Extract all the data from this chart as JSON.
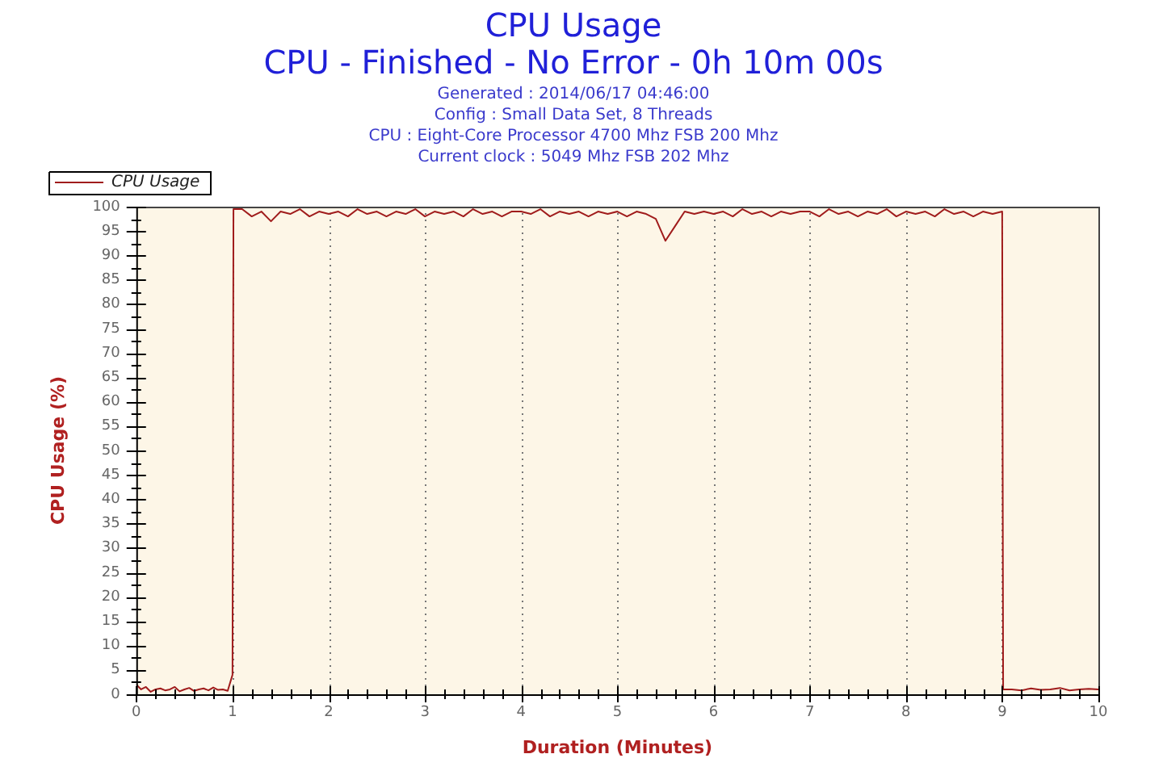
{
  "chart_data": {
    "type": "line",
    "title": "CPU Usage",
    "subtitle": "CPU - Finished - No Error - 0h 10m 00s",
    "annotations": [
      "Generated : 2014/06/17 04:46:00",
      "Config : Small Data Set, 8 Threads",
      "CPU : Eight-Core Processor 4700 Mhz FSB 200 Mhz",
      "Current clock : 5049 Mhz FSB 202 Mhz"
    ],
    "xlabel": "Duration (Minutes)",
    "ylabel": "CPU Usage (%)",
    "x": [
      0,
      0.05,
      0.1,
      0.15,
      0.2,
      0.25,
      0.3,
      0.35,
      0.4,
      0.45,
      0.5,
      0.55,
      0.6,
      0.65,
      0.7,
      0.75,
      0.8,
      0.85,
      0.9,
      0.95,
      1,
      1.01,
      1.1,
      1.2,
      1.3,
      1.4,
      1.5,
      1.6,
      1.7,
      1.8,
      1.9,
      2,
      2.1,
      2.2,
      2.3,
      2.4,
      2.5,
      2.6,
      2.7,
      2.8,
      2.9,
      3,
      3.1,
      3.2,
      3.3,
      3.4,
      3.5,
      3.6,
      3.7,
      3.8,
      3.9,
      4,
      4.1,
      4.2,
      4.3,
      4.4,
      4.5,
      4.6,
      4.7,
      4.8,
      4.9,
      5,
      5.1,
      5.2,
      5.3,
      5.4,
      5.5,
      5.6,
      5.7,
      5.8,
      5.9,
      6,
      6.1,
      6.2,
      6.3,
      6.4,
      6.5,
      6.6,
      6.7,
      6.8,
      6.9,
      7,
      7.1,
      7.2,
      7.3,
      7.4,
      7.5,
      7.6,
      7.7,
      7.8,
      7.9,
      8,
      8.1,
      8.2,
      8.3,
      8.4,
      8.5,
      8.6,
      8.7,
      8.8,
      8.9,
      9,
      9.01,
      9.1,
      9.2,
      9.3,
      9.4,
      9.5,
      9.6,
      9.7,
      9.8,
      9.9,
      10
    ],
    "series": [
      {
        "name": "CPU Usage",
        "color": "#a01c1c",
        "values": [
          2,
          1,
          1.5,
          0.5,
          1,
          1.2,
          0.8,
          1,
          1.5,
          0.6,
          1,
          1.3,
          0.7,
          1,
          1.2,
          0.8,
          1.4,
          0.9,
          1,
          0.7,
          4,
          99.5,
          99.5,
          98,
          99,
          97,
          99,
          98.5,
          99.5,
          98,
          99,
          98.5,
          99,
          98,
          99.5,
          98.5,
          99,
          98,
          99,
          98.5,
          99.5,
          98,
          99,
          98.5,
          99,
          98,
          99.5,
          98.5,
          99,
          98,
          99,
          99,
          98.5,
          99.5,
          98,
          99,
          98.5,
          99,
          98,
          99,
          98.5,
          99,
          98,
          99,
          98.5,
          97.5,
          93,
          96,
          99,
          98.5,
          99,
          98.5,
          99,
          98,
          99.5,
          98.5,
          99,
          98,
          99,
          98.5,
          99,
          99,
          98,
          99.5,
          98.5,
          99,
          98,
          99,
          98.5,
          99.5,
          98,
          99,
          98.5,
          99,
          98,
          99.5,
          98.5,
          99,
          98,
          99,
          98.5,
          99,
          1,
          1,
          0.8,
          1.2,
          0.9,
          1,
          1.3,
          0.8,
          1,
          1.1,
          1
        ]
      }
    ],
    "xlim": [
      0,
      10
    ],
    "ylim": [
      0,
      100
    ],
    "xticks": [
      0,
      {
        "value": 0.2,
        "label": null
      },
      {
        "value": 0.4,
        "label": null
      },
      {
        "value": 0.6,
        "label": null
      },
      {
        "value": 0.8,
        "label": null
      },
      1,
      {
        "value": 1.2,
        "label": null
      },
      {
        "value": 1.4,
        "label": null
      },
      {
        "value": 1.6,
        "label": null
      },
      {
        "value": 1.8,
        "label": null
      },
      2,
      {
        "value": 2.2,
        "label": null
      },
      {
        "value": 2.4,
        "label": null
      },
      {
        "value": 2.6,
        "label": null
      },
      {
        "value": 2.8,
        "label": null
      },
      3,
      {
        "value": 3.2,
        "label": null
      },
      {
        "value": 3.4,
        "label": null
      },
      {
        "value": 3.6,
        "label": null
      },
      {
        "value": 3.8,
        "label": null
      },
      4,
      {
        "value": 4.2,
        "label": null
      },
      {
        "value": 4.4,
        "label": null
      },
      {
        "value": 4.6,
        "label": null
      },
      {
        "value": 4.8,
        "label": null
      },
      5,
      {
        "value": 5.2,
        "label": null
      },
      {
        "value": 5.4,
        "label": null
      },
      {
        "value": 5.6,
        "label": null
      },
      {
        "value": 5.8,
        "label": null
      },
      6,
      {
        "value": 6.2,
        "label": null
      },
      {
        "value": 6.4,
        "label": null
      },
      {
        "value": 6.6,
        "label": null
      },
      {
        "value": 6.8,
        "label": null
      },
      7,
      {
        "value": 7.2,
        "label": null
      },
      {
        "value": 7.4,
        "label": null
      },
      {
        "value": 7.6,
        "label": null
      },
      {
        "value": 7.8,
        "label": null
      },
      8,
      {
        "value": 8.2,
        "label": null
      },
      {
        "value": 8.4,
        "label": null
      },
      {
        "value": 8.6,
        "label": null
      },
      {
        "value": 8.8,
        "label": null
      },
      9,
      {
        "value": 9.2,
        "label": null
      },
      {
        "value": 9.4,
        "label": null
      },
      {
        "value": 9.6,
        "label": null
      },
      {
        "value": 9.8,
        "label": null
      },
      10
    ],
    "yticks": [
      0,
      {
        "value": 2.5,
        "label": null
      },
      5,
      {
        "value": 7.5,
        "label": null
      },
      10,
      {
        "value": 12.5,
        "label": null
      },
      15,
      {
        "value": 17.5,
        "label": null
      },
      20,
      {
        "value": 22.5,
        "label": null
      },
      25,
      {
        "value": 27.5,
        "label": null
      },
      30,
      {
        "value": 32.5,
        "label": null
      },
      35,
      {
        "value": 37.5,
        "label": null
      },
      40,
      {
        "value": 42.5,
        "label": null
      },
      45,
      {
        "value": 47.5,
        "label": null
      },
      50,
      {
        "value": 52.5,
        "label": null
      },
      55,
      {
        "value": 57.5,
        "label": null
      },
      60,
      {
        "value": 62.5,
        "label": null
      },
      65,
      {
        "value": 67.5,
        "label": null
      },
      70,
      {
        "value": 72.5,
        "label": null
      },
      75,
      {
        "value": 77.5,
        "label": null
      },
      80,
      {
        "value": 82.5,
        "label": null
      },
      85,
      {
        "value": 87.5,
        "label": null
      },
      90,
      {
        "value": 92.5,
        "label": null
      },
      95,
      {
        "value": 97.5,
        "label": null
      },
      100
    ],
    "grid": "x",
    "legend": "top left"
  }
}
